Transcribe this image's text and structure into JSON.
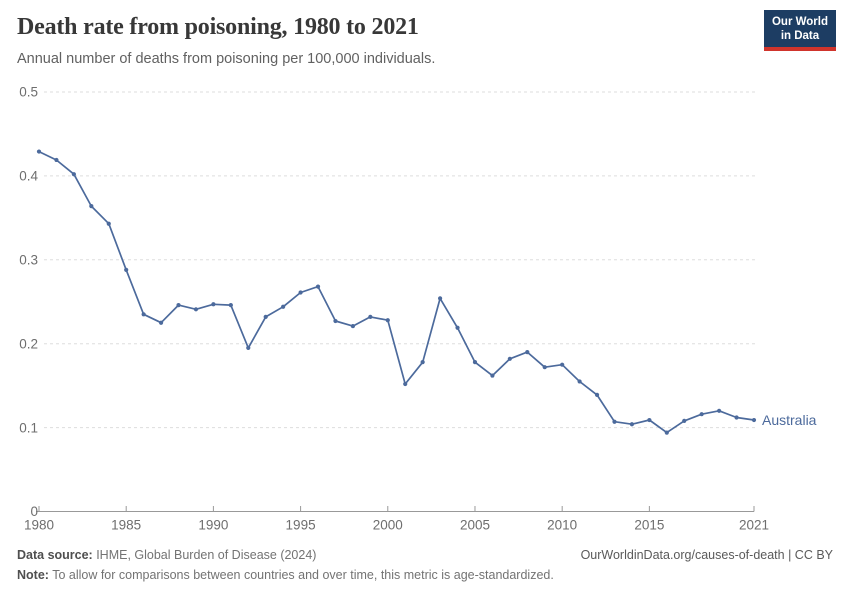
{
  "header": {
    "title": "Death rate from poisoning, 1980 to 2021",
    "subtitle": "Annual number of deaths from poisoning per 100,000 individuals.",
    "logo": {
      "line1": "Our World",
      "line2": "in Data"
    }
  },
  "chart_data": {
    "type": "line",
    "title": "Death rate from poisoning, 1980 to 2021",
    "subtitle": "Annual number of deaths from poisoning per 100,000 individuals.",
    "x": [
      1980,
      1981,
      1982,
      1983,
      1984,
      1985,
      1986,
      1987,
      1988,
      1989,
      1990,
      1991,
      1992,
      1993,
      1994,
      1995,
      1996,
      1997,
      1998,
      1999,
      2000,
      2001,
      2002,
      2003,
      2004,
      2005,
      2006,
      2007,
      2008,
      2009,
      2010,
      2011,
      2012,
      2013,
      2014,
      2015,
      2016,
      2017,
      2018,
      2019,
      2020,
      2021
    ],
    "series": [
      {
        "name": "Australia",
        "color": "#4C6A9C",
        "values": [
          0.429,
          0.419,
          0.402,
          0.364,
          0.343,
          0.288,
          0.235,
          0.225,
          0.246,
          0.241,
          0.247,
          0.246,
          0.195,
          0.232,
          0.244,
          0.261,
          0.268,
          0.227,
          0.221,
          0.232,
          0.228,
          0.152,
          0.178,
          0.254,
          0.219,
          0.178,
          0.162,
          0.182,
          0.19,
          0.172,
          0.175,
          0.155,
          0.139,
          0.107,
          0.104,
          0.109,
          0.094,
          0.108,
          0.116,
          0.12,
          0.112,
          0.109
        ]
      }
    ],
    "x_ticks": [
      "1980",
      "1985",
      "1990",
      "1995",
      "2000",
      "2005",
      "2010",
      "2015",
      "2021"
    ],
    "y_ticks": [
      "0",
      "0.1",
      "0.2",
      "0.3",
      "0.4",
      "0.5"
    ],
    "xlim": [
      1980,
      2021
    ],
    "ylim": [
      0,
      0.5
    ],
    "grid": "horizontal-dashed",
    "legend_position": "end-of-line-label",
    "colors": {
      "line": "#4C6A9C",
      "gridline": "#dddddd",
      "axis": "#999999",
      "tick_label": "#6e6e6e"
    }
  },
  "footer": {
    "datasource_label": "Data source:",
    "datasource_text": " IHME, Global Burden of Disease (2024)",
    "note_label": "Note:",
    "note_text": " To allow for comparisons between countries and over time, this metric is age-standardized.",
    "url": "OurWorldinData.org/causes-of-death | CC BY"
  }
}
